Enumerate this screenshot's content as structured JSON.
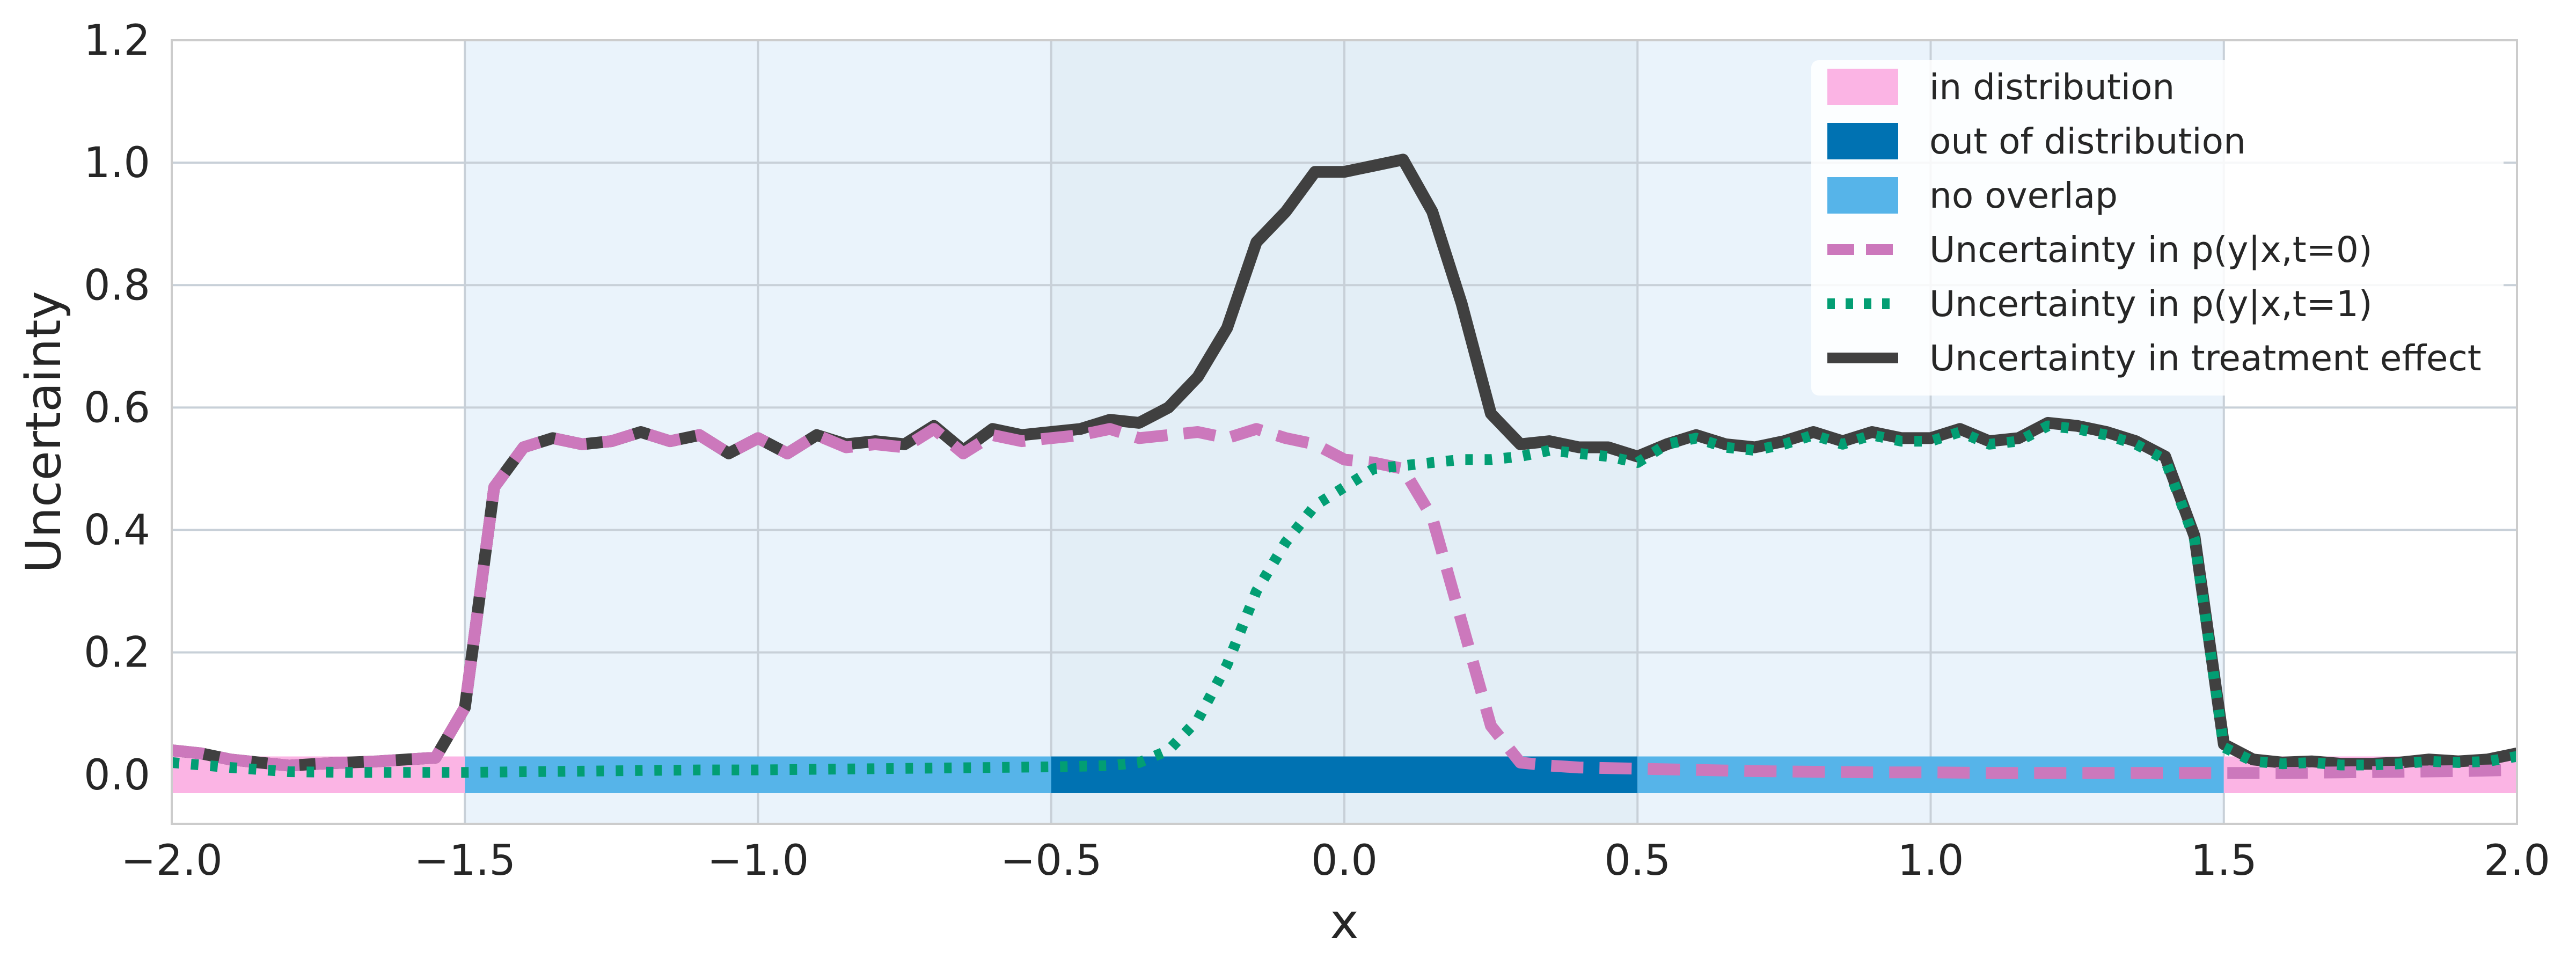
{
  "chart_data": {
    "type": "line",
    "title": "",
    "xlabel": "x",
    "ylabel": "Uncertainty",
    "xlim": [
      -2.0,
      2.0
    ],
    "ylim": [
      -0.08,
      1.2
    ],
    "grid": true,
    "legend_position": "top-right",
    "xticks": [
      "−2.0",
      "−1.5",
      "−1.0",
      "−0.5",
      "0.0",
      "0.5",
      "1.0",
      "1.5",
      "2.0"
    ],
    "xtick_values": [
      -2.0,
      -1.5,
      -1.0,
      -0.5,
      0.0,
      0.5,
      1.0,
      1.5,
      2.0
    ],
    "yticks": [
      "0.0",
      "0.2",
      "0.4",
      "0.6",
      "0.8",
      "1.0",
      "1.2"
    ],
    "ytick_values": [
      0.0,
      0.2,
      0.4,
      0.6,
      0.8,
      1.0,
      1.2
    ],
    "shaded_regions": [
      {
        "x": [
          -1.5,
          -0.5
        ],
        "color": "#eaf3fb",
        "class": "no overlap"
      },
      {
        "x": [
          -0.5,
          0.5
        ],
        "color": "#e3eef6",
        "class": "out of distribution"
      },
      {
        "x": [
          0.5,
          1.5
        ],
        "color": "#eaf3fb",
        "class": "no overlap"
      }
    ],
    "bands": {
      "y": [
        -0.03,
        0.03
      ],
      "segments": [
        {
          "x": [
            -2.0,
            -1.5
          ],
          "color": "#fbb4e4",
          "class": "in distribution"
        },
        {
          "x": [
            -1.5,
            -0.5
          ],
          "color": "#56b4e9",
          "class": "no overlap"
        },
        {
          "x": [
            -0.5,
            0.5
          ],
          "color": "#0072b2",
          "class": "out of distribution"
        },
        {
          "x": [
            0.5,
            1.5
          ],
          "color": "#56b4e9",
          "class": "no overlap"
        },
        {
          "x": [
            1.5,
            2.0
          ],
          "color": "#fbb4e4",
          "class": "in distribution"
        }
      ]
    },
    "series": [
      {
        "name": "Uncertainty in treatment effect",
        "color": "#404040",
        "style": "solid",
        "points": [
          [
            -2.0,
            0.04
          ],
          [
            -1.95,
            0.035
          ],
          [
            -1.9,
            0.025
          ],
          [
            -1.85,
            0.02
          ],
          [
            -1.8,
            0.015
          ],
          [
            -1.75,
            0.018
          ],
          [
            -1.7,
            0.02
          ],
          [
            -1.65,
            0.022
          ],
          [
            -1.6,
            0.025
          ],
          [
            -1.55,
            0.028
          ],
          [
            -1.5,
            0.11
          ],
          [
            -1.45,
            0.47
          ],
          [
            -1.4,
            0.535
          ],
          [
            -1.35,
            0.55
          ],
          [
            -1.3,
            0.54
          ],
          [
            -1.25,
            0.545
          ],
          [
            -1.2,
            0.56
          ],
          [
            -1.15,
            0.545
          ],
          [
            -1.1,
            0.555
          ],
          [
            -1.05,
            0.525
          ],
          [
            -1.0,
            0.55
          ],
          [
            -0.95,
            0.525
          ],
          [
            -0.9,
            0.555
          ],
          [
            -0.85,
            0.54
          ],
          [
            -0.8,
            0.545
          ],
          [
            -0.75,
            0.54
          ],
          [
            -0.7,
            0.57
          ],
          [
            -0.65,
            0.53
          ],
          [
            -0.6,
            0.565
          ],
          [
            -0.55,
            0.555
          ],
          [
            -0.5,
            0.56
          ],
          [
            -0.45,
            0.565
          ],
          [
            -0.4,
            0.58
          ],
          [
            -0.35,
            0.575
          ],
          [
            -0.3,
            0.6
          ],
          [
            -0.25,
            0.65
          ],
          [
            -0.2,
            0.73
          ],
          [
            -0.15,
            0.87
          ],
          [
            -0.1,
            0.92
          ],
          [
            -0.05,
            0.985
          ],
          [
            0.0,
            0.985
          ],
          [
            0.05,
            0.995
          ],
          [
            0.1,
            1.005
          ],
          [
            0.15,
            0.92
          ],
          [
            0.2,
            0.77
          ],
          [
            0.25,
            0.59
          ],
          [
            0.3,
            0.54
          ],
          [
            0.35,
            0.545
          ],
          [
            0.4,
            0.535
          ],
          [
            0.45,
            0.535
          ],
          [
            0.5,
            0.52
          ],
          [
            0.55,
            0.54
          ],
          [
            0.6,
            0.555
          ],
          [
            0.65,
            0.54
          ],
          [
            0.7,
            0.535
          ],
          [
            0.75,
            0.545
          ],
          [
            0.8,
            0.56
          ],
          [
            0.85,
            0.545
          ],
          [
            0.9,
            0.56
          ],
          [
            0.95,
            0.55
          ],
          [
            1.0,
            0.55
          ],
          [
            1.05,
            0.565
          ],
          [
            1.1,
            0.545
          ],
          [
            1.15,
            0.55
          ],
          [
            1.2,
            0.575
          ],
          [
            1.25,
            0.57
          ],
          [
            1.3,
            0.56
          ],
          [
            1.35,
            0.545
          ],
          [
            1.4,
            0.52
          ],
          [
            1.45,
            0.39
          ],
          [
            1.5,
            0.05
          ],
          [
            1.55,
            0.025
          ],
          [
            1.6,
            0.02
          ],
          [
            1.65,
            0.022
          ],
          [
            1.7,
            0.018
          ],
          [
            1.75,
            0.018
          ],
          [
            1.8,
            0.02
          ],
          [
            1.85,
            0.025
          ],
          [
            1.9,
            0.022
          ],
          [
            1.95,
            0.025
          ],
          [
            2.0,
            0.035
          ]
        ]
      },
      {
        "name": "Uncertainty in p(y|x,t=0)",
        "color": "#cc78bc",
        "style": "dashed",
        "points": [
          [
            -2.0,
            0.04
          ],
          [
            -1.95,
            0.035
          ],
          [
            -1.9,
            0.025
          ],
          [
            -1.85,
            0.02
          ],
          [
            -1.8,
            0.015
          ],
          [
            -1.75,
            0.018
          ],
          [
            -1.7,
            0.02
          ],
          [
            -1.65,
            0.022
          ],
          [
            -1.6,
            0.025
          ],
          [
            -1.55,
            0.028
          ],
          [
            -1.5,
            0.11
          ],
          [
            -1.45,
            0.47
          ],
          [
            -1.4,
            0.535
          ],
          [
            -1.35,
            0.55
          ],
          [
            -1.3,
            0.54
          ],
          [
            -1.25,
            0.545
          ],
          [
            -1.2,
            0.56
          ],
          [
            -1.15,
            0.545
          ],
          [
            -1.1,
            0.555
          ],
          [
            -1.05,
            0.525
          ],
          [
            -1.0,
            0.55
          ],
          [
            -0.95,
            0.525
          ],
          [
            -0.9,
            0.555
          ],
          [
            -0.85,
            0.535
          ],
          [
            -0.8,
            0.54
          ],
          [
            -0.75,
            0.535
          ],
          [
            -0.7,
            0.565
          ],
          [
            -0.65,
            0.525
          ],
          [
            -0.6,
            0.555
          ],
          [
            -0.55,
            0.545
          ],
          [
            -0.5,
            0.55
          ],
          [
            -0.45,
            0.555
          ],
          [
            -0.4,
            0.565
          ],
          [
            -0.35,
            0.55
          ],
          [
            -0.3,
            0.555
          ],
          [
            -0.25,
            0.56
          ],
          [
            -0.2,
            0.55
          ],
          [
            -0.15,
            0.565
          ],
          [
            -0.1,
            0.55
          ],
          [
            -0.05,
            0.54
          ],
          [
            0.0,
            0.515
          ],
          [
            0.05,
            0.51
          ],
          [
            0.1,
            0.5
          ],
          [
            0.15,
            0.42
          ],
          [
            0.2,
            0.25
          ],
          [
            0.25,
            0.08
          ],
          [
            0.3,
            0.02
          ],
          [
            0.35,
            0.015
          ],
          [
            0.4,
            0.012
          ],
          [
            0.5,
            0.01
          ],
          [
            0.6,
            0.008
          ],
          [
            0.7,
            0.006
          ],
          [
            0.8,
            0.005
          ],
          [
            0.9,
            0.004
          ],
          [
            1.0,
            0.004
          ],
          [
            1.1,
            0.003
          ],
          [
            1.2,
            0.003
          ],
          [
            1.3,
            0.003
          ],
          [
            1.4,
            0.003
          ],
          [
            1.5,
            0.003
          ],
          [
            1.6,
            0.003
          ],
          [
            1.7,
            0.004
          ],
          [
            1.8,
            0.005
          ],
          [
            1.9,
            0.006
          ],
          [
            2.0,
            0.008
          ]
        ]
      },
      {
        "name": "Uncertainty in p(y|x,t=1)",
        "color": "#029e73",
        "style": "dotted",
        "points": [
          [
            -2.0,
            0.02
          ],
          [
            -1.9,
            0.012
          ],
          [
            -1.8,
            0.005
          ],
          [
            -1.7,
            0.004
          ],
          [
            -1.6,
            0.004
          ],
          [
            -1.5,
            0.004
          ],
          [
            -1.4,
            0.005
          ],
          [
            -1.3,
            0.006
          ],
          [
            -1.2,
            0.007
          ],
          [
            -1.1,
            0.008
          ],
          [
            -1.0,
            0.008
          ],
          [
            -0.9,
            0.009
          ],
          [
            -0.8,
            0.01
          ],
          [
            -0.7,
            0.011
          ],
          [
            -0.6,
            0.012
          ],
          [
            -0.5,
            0.013
          ],
          [
            -0.45,
            0.014
          ],
          [
            -0.4,
            0.015
          ],
          [
            -0.35,
            0.02
          ],
          [
            -0.3,
            0.04
          ],
          [
            -0.25,
            0.09
          ],
          [
            -0.2,
            0.18
          ],
          [
            -0.15,
            0.3
          ],
          [
            -0.1,
            0.38
          ],
          [
            -0.05,
            0.44
          ],
          [
            0.0,
            0.47
          ],
          [
            0.05,
            0.5
          ],
          [
            0.1,
            0.505
          ],
          [
            0.15,
            0.51
          ],
          [
            0.2,
            0.515
          ],
          [
            0.25,
            0.515
          ],
          [
            0.3,
            0.52
          ],
          [
            0.35,
            0.53
          ],
          [
            0.4,
            0.525
          ],
          [
            0.45,
            0.52
          ],
          [
            0.5,
            0.51
          ],
          [
            0.55,
            0.54
          ],
          [
            0.6,
            0.55
          ],
          [
            0.65,
            0.535
          ],
          [
            0.7,
            0.53
          ],
          [
            0.75,
            0.54
          ],
          [
            0.8,
            0.555
          ],
          [
            0.85,
            0.54
          ],
          [
            0.9,
            0.555
          ],
          [
            0.95,
            0.545
          ],
          [
            1.0,
            0.545
          ],
          [
            1.05,
            0.56
          ],
          [
            1.1,
            0.54
          ],
          [
            1.15,
            0.545
          ],
          [
            1.2,
            0.57
          ],
          [
            1.25,
            0.565
          ],
          [
            1.3,
            0.555
          ],
          [
            1.35,
            0.54
          ],
          [
            1.4,
            0.515
          ],
          [
            1.45,
            0.385
          ],
          [
            1.5,
            0.045
          ],
          [
            1.55,
            0.022
          ],
          [
            1.6,
            0.018
          ],
          [
            1.65,
            0.02
          ],
          [
            1.7,
            0.016
          ],
          [
            1.75,
            0.016
          ],
          [
            1.8,
            0.018
          ],
          [
            1.85,
            0.022
          ],
          [
            1.9,
            0.02
          ],
          [
            1.95,
            0.022
          ],
          [
            2.0,
            0.03
          ]
        ]
      }
    ],
    "legend": [
      {
        "label": "in distribution",
        "kind": "patch",
        "color": "#fbb4e4"
      },
      {
        "label": "out of distribution",
        "kind": "patch",
        "color": "#0072b2"
      },
      {
        "label": "no overlap",
        "kind": "patch",
        "color": "#56b4e9"
      },
      {
        "label": "Uncertainty in p(y|x,t=0)",
        "kind": "line",
        "style": "dashed",
        "color": "#cc78bc"
      },
      {
        "label": "Uncertainty in p(y|x,t=1)",
        "kind": "line",
        "style": "dotted",
        "color": "#029e73"
      },
      {
        "label": "Uncertainty in treatment effect",
        "kind": "line",
        "style": "solid",
        "color": "#404040"
      }
    ]
  }
}
